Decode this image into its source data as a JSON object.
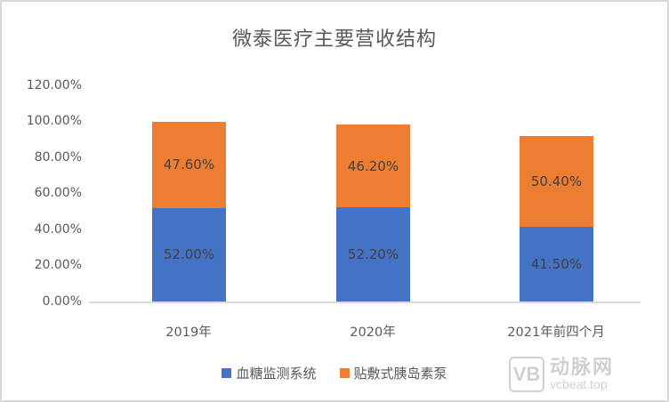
{
  "chart_data": {
    "type": "bar",
    "stacked": true,
    "title": "微泰医疗主要营收结构",
    "categories": [
      "2019年",
      "2020年",
      "2021年前四个月"
    ],
    "series": [
      {
        "name": "血糖监测系统",
        "color": "#4472c4",
        "values": [
          52.0,
          52.2,
          41.5
        ],
        "labels": [
          "52.00%",
          "52.20%",
          "41.50%"
        ]
      },
      {
        "name": "贴敷式胰岛素泵",
        "color": "#ed7d31",
        "values": [
          47.6,
          46.2,
          50.4
        ],
        "labels": [
          "47.60%",
          "46.20%",
          "50.40%"
        ]
      }
    ],
    "xlabel": "",
    "ylabel": "",
    "ylim": [
      0,
      120
    ],
    "yticks": [
      "0.00%",
      "20.00%",
      "40.00%",
      "60.00%",
      "80.00%",
      "100.00%",
      "120.00%"
    ],
    "grid": false,
    "legend_position": "bottom"
  },
  "watermark": {
    "logo": "VB",
    "name": "动脉网",
    "url": "vcbeat.top"
  }
}
